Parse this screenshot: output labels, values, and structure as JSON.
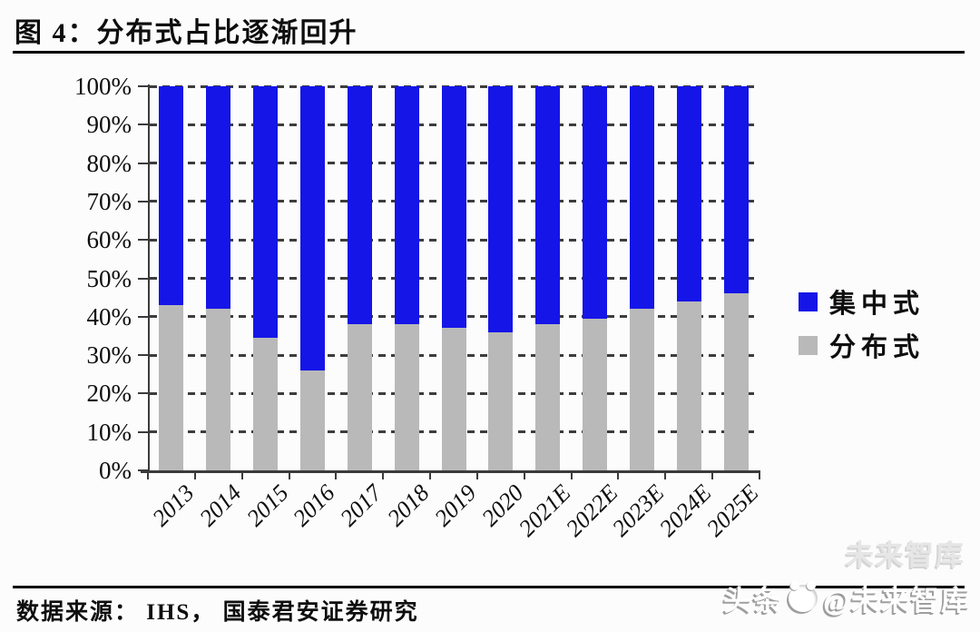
{
  "figure": {
    "title": "图 4：分布式占比逐渐回升",
    "source": "数据来源： IHS， 国泰君安证券研究",
    "watermark": {
      "prefix": "头条",
      "suffix": "@未来智库",
      "ghost": "未来智库",
      "logo": "toutiao-panda-logo"
    }
  },
  "chart_data": {
    "type": "bar",
    "stacked": true,
    "percent_stacked": true,
    "title": "分布式占比逐渐回升",
    "categories": [
      "2013",
      "2014",
      "2015",
      "2016",
      "2017",
      "2018",
      "2019",
      "2020",
      "2021E",
      "2022E",
      "2023E",
      "2024E",
      "2025E"
    ],
    "series": [
      {
        "name": "集中式",
        "color": "#1515e8",
        "values": [
          57,
          58,
          65.5,
          74,
          62,
          62,
          63,
          64,
          62,
          60.5,
          58,
          56,
          54
        ]
      },
      {
        "name": "分布式",
        "color": "#b9b9b9",
        "values": [
          43,
          42,
          34.5,
          26,
          38,
          38,
          37,
          36,
          38,
          39.5,
          42,
          44,
          46
        ]
      }
    ],
    "xlabel": "",
    "ylabel": "",
    "ylim": [
      0,
      100
    ],
    "y_ticks": [
      "100%",
      "90%",
      "80%",
      "70%",
      "60%",
      "50%",
      "40%",
      "30%",
      "20%",
      "10%",
      "0%"
    ],
    "grid": "horizontal-dashed",
    "legend_position": "right-middle",
    "colors": {
      "centralized_blue": "#1515e8",
      "distributed_gray": "#b9b9b9",
      "axis": "#3b3b3b",
      "text": "#0e0e0e"
    }
  }
}
